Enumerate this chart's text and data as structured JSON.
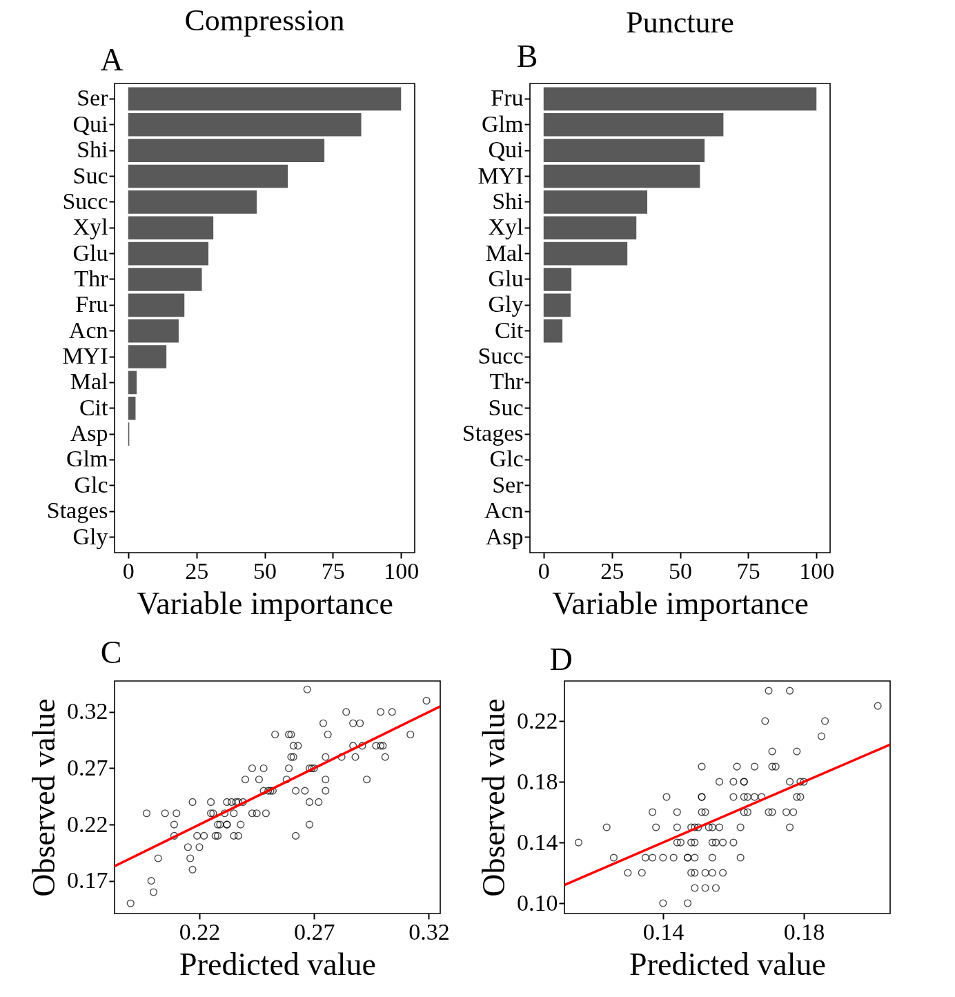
{
  "chart_data": [
    {
      "type": "bar",
      "orientation": "horizontal",
      "title": "Compression",
      "xlabel": "Variable importance",
      "annotations": [
        "A"
      ],
      "color": "#595959",
      "categories": [
        "Ser",
        "Qui",
        "Shi",
        "Suc",
        "Succ",
        "Xyl",
        "Glu",
        "Thr",
        "Fru",
        "Acn",
        "MYI",
        "Mal",
        "Cit",
        "Asp",
        "Glm",
        "Glc",
        "Stages",
        "Gly"
      ],
      "values": [
        100,
        85.4,
        71.9,
        58.5,
        47.1,
        31.2,
        29.4,
        27.0,
        20.6,
        18.5,
        14.0,
        3.1,
        2.7,
        0.4,
        0,
        0,
        0,
        0
      ],
      "xlim": [
        -5,
        105
      ],
      "xticks": [
        0,
        25,
        50,
        75,
        100
      ]
    },
    {
      "type": "bar",
      "orientation": "horizontal",
      "title": "Puncture",
      "xlabel": "Variable importance",
      "annotations": [
        "B"
      ],
      "color": "#595959",
      "categories": [
        "Fru",
        "Glm",
        "Qui",
        "MYI",
        "Shi",
        "Xyl",
        "Mal",
        "Glu",
        "Gly",
        "Cit",
        "Succ",
        "Thr",
        "Suc",
        "Stages",
        "Glc",
        "Ser",
        "Acn",
        "Asp"
      ],
      "values": [
        100,
        65.9,
        59.0,
        57.3,
        38.0,
        34.0,
        30.7,
        10.2,
        9.9,
        6.9,
        0,
        0,
        0,
        0,
        0,
        0,
        0,
        0
      ],
      "xlim": [
        -5,
        105
      ],
      "xticks": [
        0,
        25,
        50,
        75,
        100
      ]
    },
    {
      "type": "scatter",
      "xlabel": "Predicted value",
      "ylabel": "Observed value",
      "annotations": [
        "C"
      ],
      "xlim": [
        0.183,
        0.325
      ],
      "ylim": [
        0.141,
        0.3475
      ],
      "xticks": [
        0.22,
        0.27,
        0.32
      ],
      "yticks": [
        0.17,
        0.22,
        0.27,
        0.32
      ],
      "series": [
        {
          "type": "scatter",
          "color": "#000000",
          "marker": "circle",
          "x": [
            0.267,
            0.319,
            0.284,
            0.299,
            0.304,
            0.274,
            0.287,
            0.29,
            0.253,
            0.259,
            0.26,
            0.276,
            0.312,
            0.261,
            0.263,
            0.287,
            0.291,
            0.297,
            0.299,
            0.3,
            0.26,
            0.261,
            0.275,
            0.282,
            0.288,
            0.301,
            0.243,
            0.248,
            0.259,
            0.268,
            0.269,
            0.27,
            0.24,
            0.246,
            0.258,
            0.275,
            0.293,
            0.248,
            0.25,
            0.251,
            0.252,
            0.262,
            0.266,
            0.275,
            0.217,
            0.225,
            0.232,
            0.234,
            0.236,
            0.237,
            0.239,
            0.268,
            0.272,
            0.197,
            0.205,
            0.21,
            0.225,
            0.226,
            0.231,
            0.235,
            0.243,
            0.245,
            0.249,
            0.209,
            0.228,
            0.229,
            0.232,
            0.232,
            0.238,
            0.268,
            0.209,
            0.219,
            0.222,
            0.227,
            0.228,
            0.235,
            0.237,
            0.262,
            0.215,
            0.22,
            0.202,
            0.216,
            0.217,
            0.199,
            0.2,
            0.19
          ],
          "values": [
            0.34,
            0.33,
            0.32,
            0.32,
            0.32,
            0.31,
            0.31,
            0.31,
            0.3,
            0.3,
            0.3,
            0.3,
            0.3,
            0.29,
            0.29,
            0.29,
            0.29,
            0.29,
            0.29,
            0.29,
            0.28,
            0.28,
            0.28,
            0.28,
            0.28,
            0.28,
            0.27,
            0.27,
            0.27,
            0.27,
            0.27,
            0.27,
            0.26,
            0.26,
            0.26,
            0.26,
            0.26,
            0.25,
            0.25,
            0.25,
            0.25,
            0.25,
            0.25,
            0.25,
            0.24,
            0.24,
            0.24,
            0.24,
            0.24,
            0.24,
            0.24,
            0.24,
            0.24,
            0.23,
            0.23,
            0.23,
            0.23,
            0.23,
            0.23,
            0.23,
            0.23,
            0.23,
            0.23,
            0.22,
            0.22,
            0.22,
            0.22,
            0.22,
            0.22,
            0.22,
            0.21,
            0.21,
            0.21,
            0.21,
            0.21,
            0.21,
            0.21,
            0.21,
            0.2,
            0.2,
            0.19,
            0.19,
            0.18,
            0.17,
            0.16,
            0.15
          ]
        },
        {
          "type": "line",
          "color": "#ff0000",
          "x": [
            0.183,
            0.325
          ],
          "values": [
            0.183,
            0.325
          ]
        }
      ]
    },
    {
      "type": "scatter",
      "xlabel": "Predicted value",
      "ylabel": "Observed value",
      "annotations": [
        "D"
      ],
      "xlim": [
        0.112,
        0.2045
      ],
      "ylim": [
        0.0932,
        0.2464
      ],
      "xticks": [
        0.14,
        0.18
      ],
      "yticks": [
        {
          "value": 0.1,
          "label": "0.10"
        },
        0.14,
        0.18,
        0.22
      ],
      "series": [
        {
          "type": "scatter",
          "color": "#000000",
          "marker": "circle",
          "x": [
            0.17,
            0.176,
            0.201,
            0.169,
            0.186,
            0.185,
            0.171,
            0.178,
            0.151,
            0.161,
            0.166,
            0.171,
            0.172,
            0.156,
            0.16,
            0.163,
            0.163,
            0.176,
            0.179,
            0.18,
            0.141,
            0.151,
            0.151,
            0.16,
            0.163,
            0.164,
            0.166,
            0.168,
            0.178,
            0.179,
            0.137,
            0.144,
            0.151,
            0.152,
            0.163,
            0.164,
            0.17,
            0.171,
            0.175,
            0.177,
            0.124,
            0.138,
            0.144,
            0.148,
            0.149,
            0.15,
            0.153,
            0.154,
            0.156,
            0.162,
            0.176,
            0.116,
            0.144,
            0.145,
            0.148,
            0.149,
            0.154,
            0.155,
            0.157,
            0.16,
            0.126,
            0.135,
            0.137,
            0.14,
            0.143,
            0.147,
            0.147,
            0.149,
            0.154,
            0.162,
            0.13,
            0.134,
            0.148,
            0.149,
            0.152,
            0.154,
            0.157,
            0.149,
            0.152,
            0.155,
            0.14,
            0.147
          ],
          "values": [
            0.24,
            0.24,
            0.23,
            0.22,
            0.22,
            0.21,
            0.2,
            0.2,
            0.19,
            0.19,
            0.19,
            0.19,
            0.19,
            0.18,
            0.18,
            0.18,
            0.18,
            0.18,
            0.18,
            0.18,
            0.17,
            0.17,
            0.17,
            0.17,
            0.17,
            0.17,
            0.17,
            0.17,
            0.17,
            0.17,
            0.16,
            0.16,
            0.16,
            0.16,
            0.16,
            0.16,
            0.16,
            0.16,
            0.16,
            0.16,
            0.15,
            0.15,
            0.15,
            0.15,
            0.15,
            0.15,
            0.15,
            0.15,
            0.15,
            0.15,
            0.15,
            0.14,
            0.14,
            0.14,
            0.14,
            0.14,
            0.14,
            0.14,
            0.14,
            0.14,
            0.13,
            0.13,
            0.13,
            0.13,
            0.13,
            0.13,
            0.13,
            0.13,
            0.13,
            0.13,
            0.12,
            0.12,
            0.12,
            0.12,
            0.12,
            0.12,
            0.12,
            0.11,
            0.11,
            0.11,
            0.1,
            0.1
          ]
        },
        {
          "type": "line",
          "color": "#ff0000",
          "x": [
            0.112,
            0.2045
          ],
          "values": [
            0.112,
            0.2045
          ]
        }
      ]
    }
  ]
}
